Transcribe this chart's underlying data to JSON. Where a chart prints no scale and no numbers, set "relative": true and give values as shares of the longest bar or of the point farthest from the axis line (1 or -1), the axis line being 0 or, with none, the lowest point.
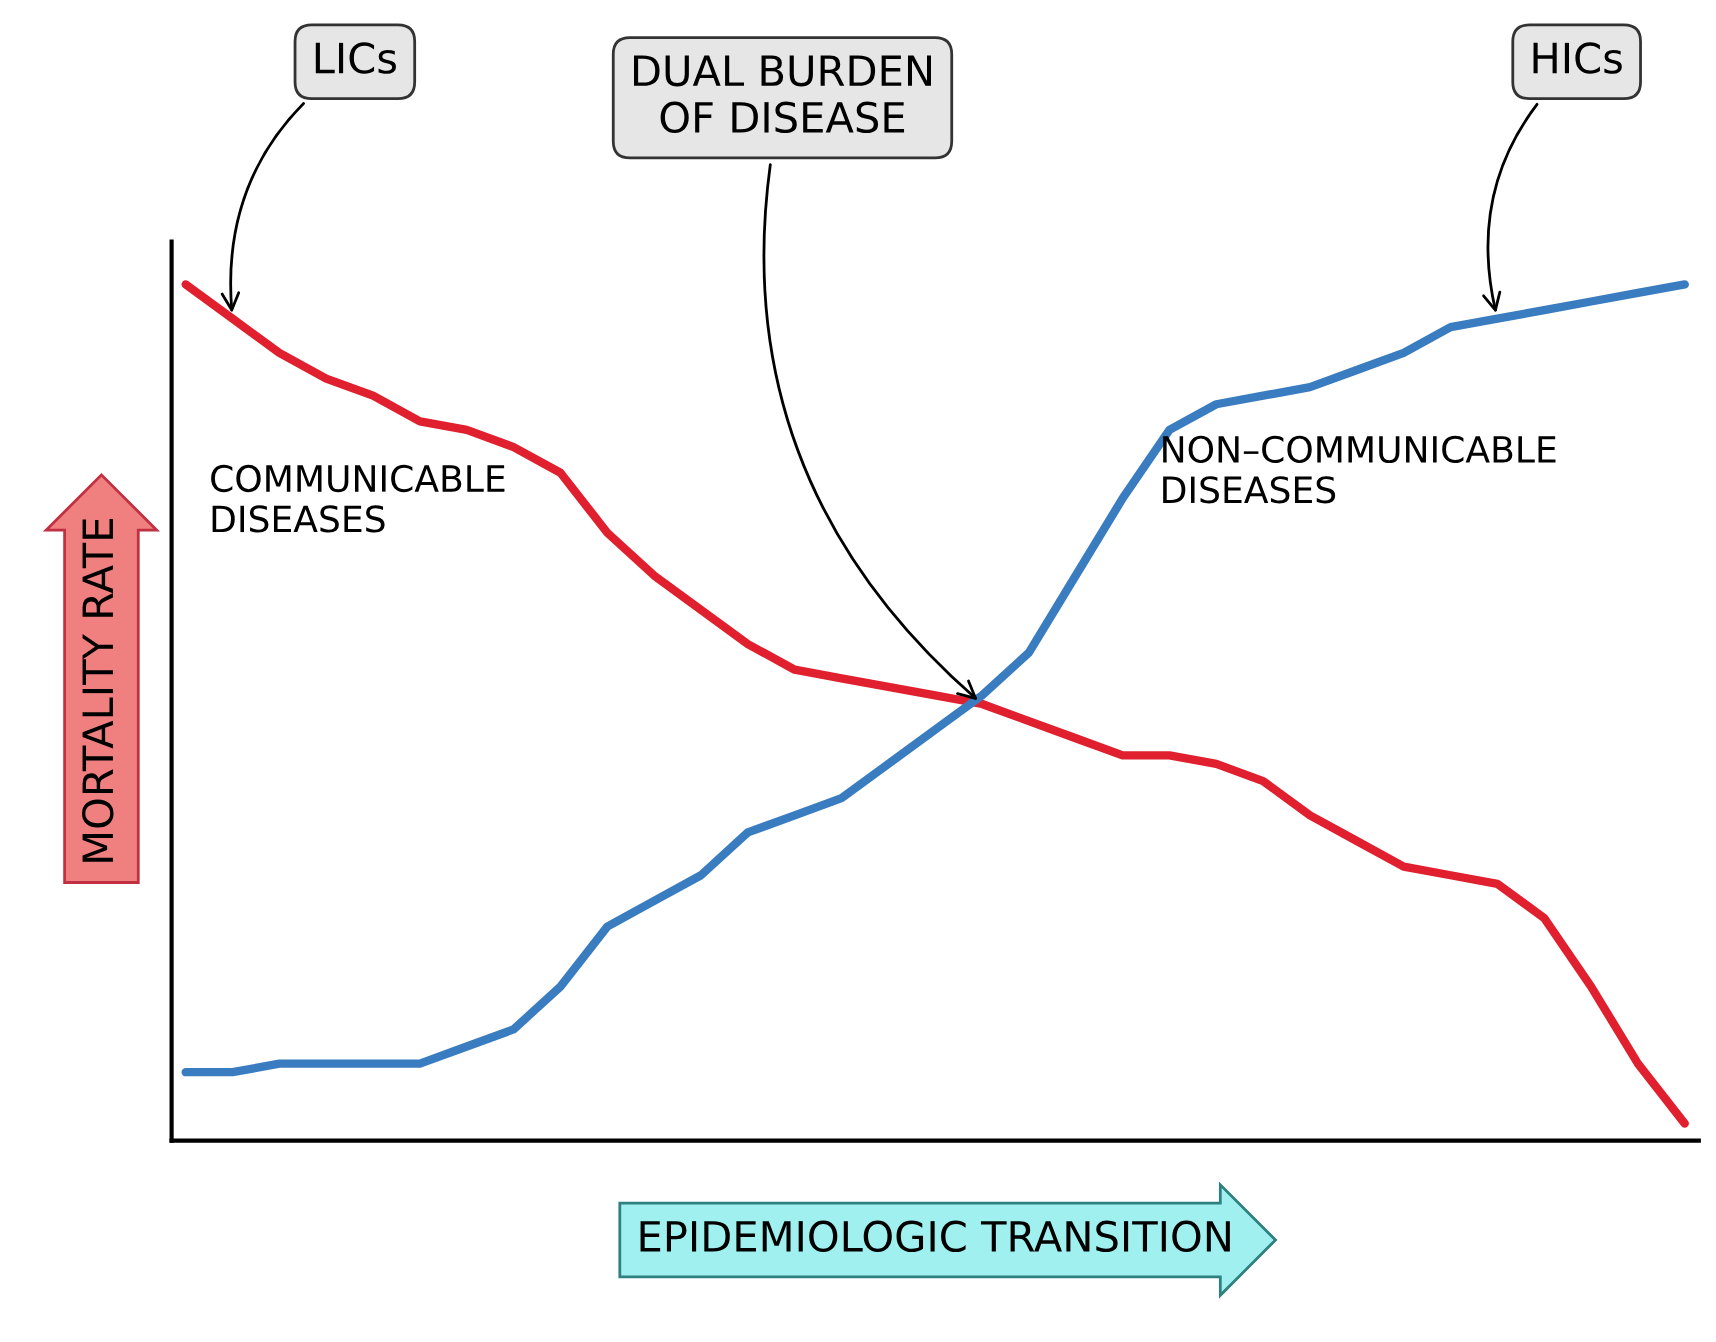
{
  "chart_data": {
    "type": "line",
    "relative": true,
    "ylabel": "MORTALITY RATE",
    "xlabel": "EPIDEMIOLOGIC TRANSITION",
    "categories": [
      null,
      null,
      null,
      null,
      null,
      null,
      null,
      null,
      null,
      null,
      null,
      null,
      null,
      null,
      null,
      null,
      null,
      null,
      null,
      null,
      null,
      null,
      null,
      null,
      null,
      null,
      null,
      null,
      null,
      null,
      null,
      null,
      null
    ],
    "series": [
      {
        "name": "COMMUNICABLE DISEASES",
        "color": "#e0202e",
        "values": [
          1.0,
          0.96,
          0.92,
          0.89,
          0.87,
          0.84,
          0.83,
          0.81,
          0.78,
          0.71,
          0.66,
          0.62,
          0.58,
          0.55,
          0.54,
          0.53,
          0.52,
          0.51,
          0.49,
          0.47,
          0.45,
          0.45,
          0.44,
          0.42,
          0.38,
          0.35,
          0.32,
          0.31,
          0.3,
          0.26,
          0.18,
          0.09,
          0.02
        ]
      },
      {
        "name": "NON–COMMUNICABLE DISEASES",
        "color": "#3a7cc0",
        "values": [
          0.08,
          0.08,
          0.09,
          0.09,
          0.09,
          0.09,
          0.11,
          0.13,
          0.18,
          0.25,
          0.28,
          0.31,
          0.36,
          0.38,
          0.4,
          0.44,
          0.48,
          0.52,
          0.57,
          0.66,
          0.75,
          0.83,
          0.86,
          0.87,
          0.88,
          0.9,
          0.92,
          0.95,
          0.96,
          0.97,
          0.98,
          0.99,
          1.0
        ]
      }
    ],
    "annotations": [
      "LICs",
      "DUAL BURDEN\nOF DISEASE",
      "HICs"
    ],
    "legend": false,
    "grid": false,
    "marker": "none",
    "line_style": "solid"
  }
}
